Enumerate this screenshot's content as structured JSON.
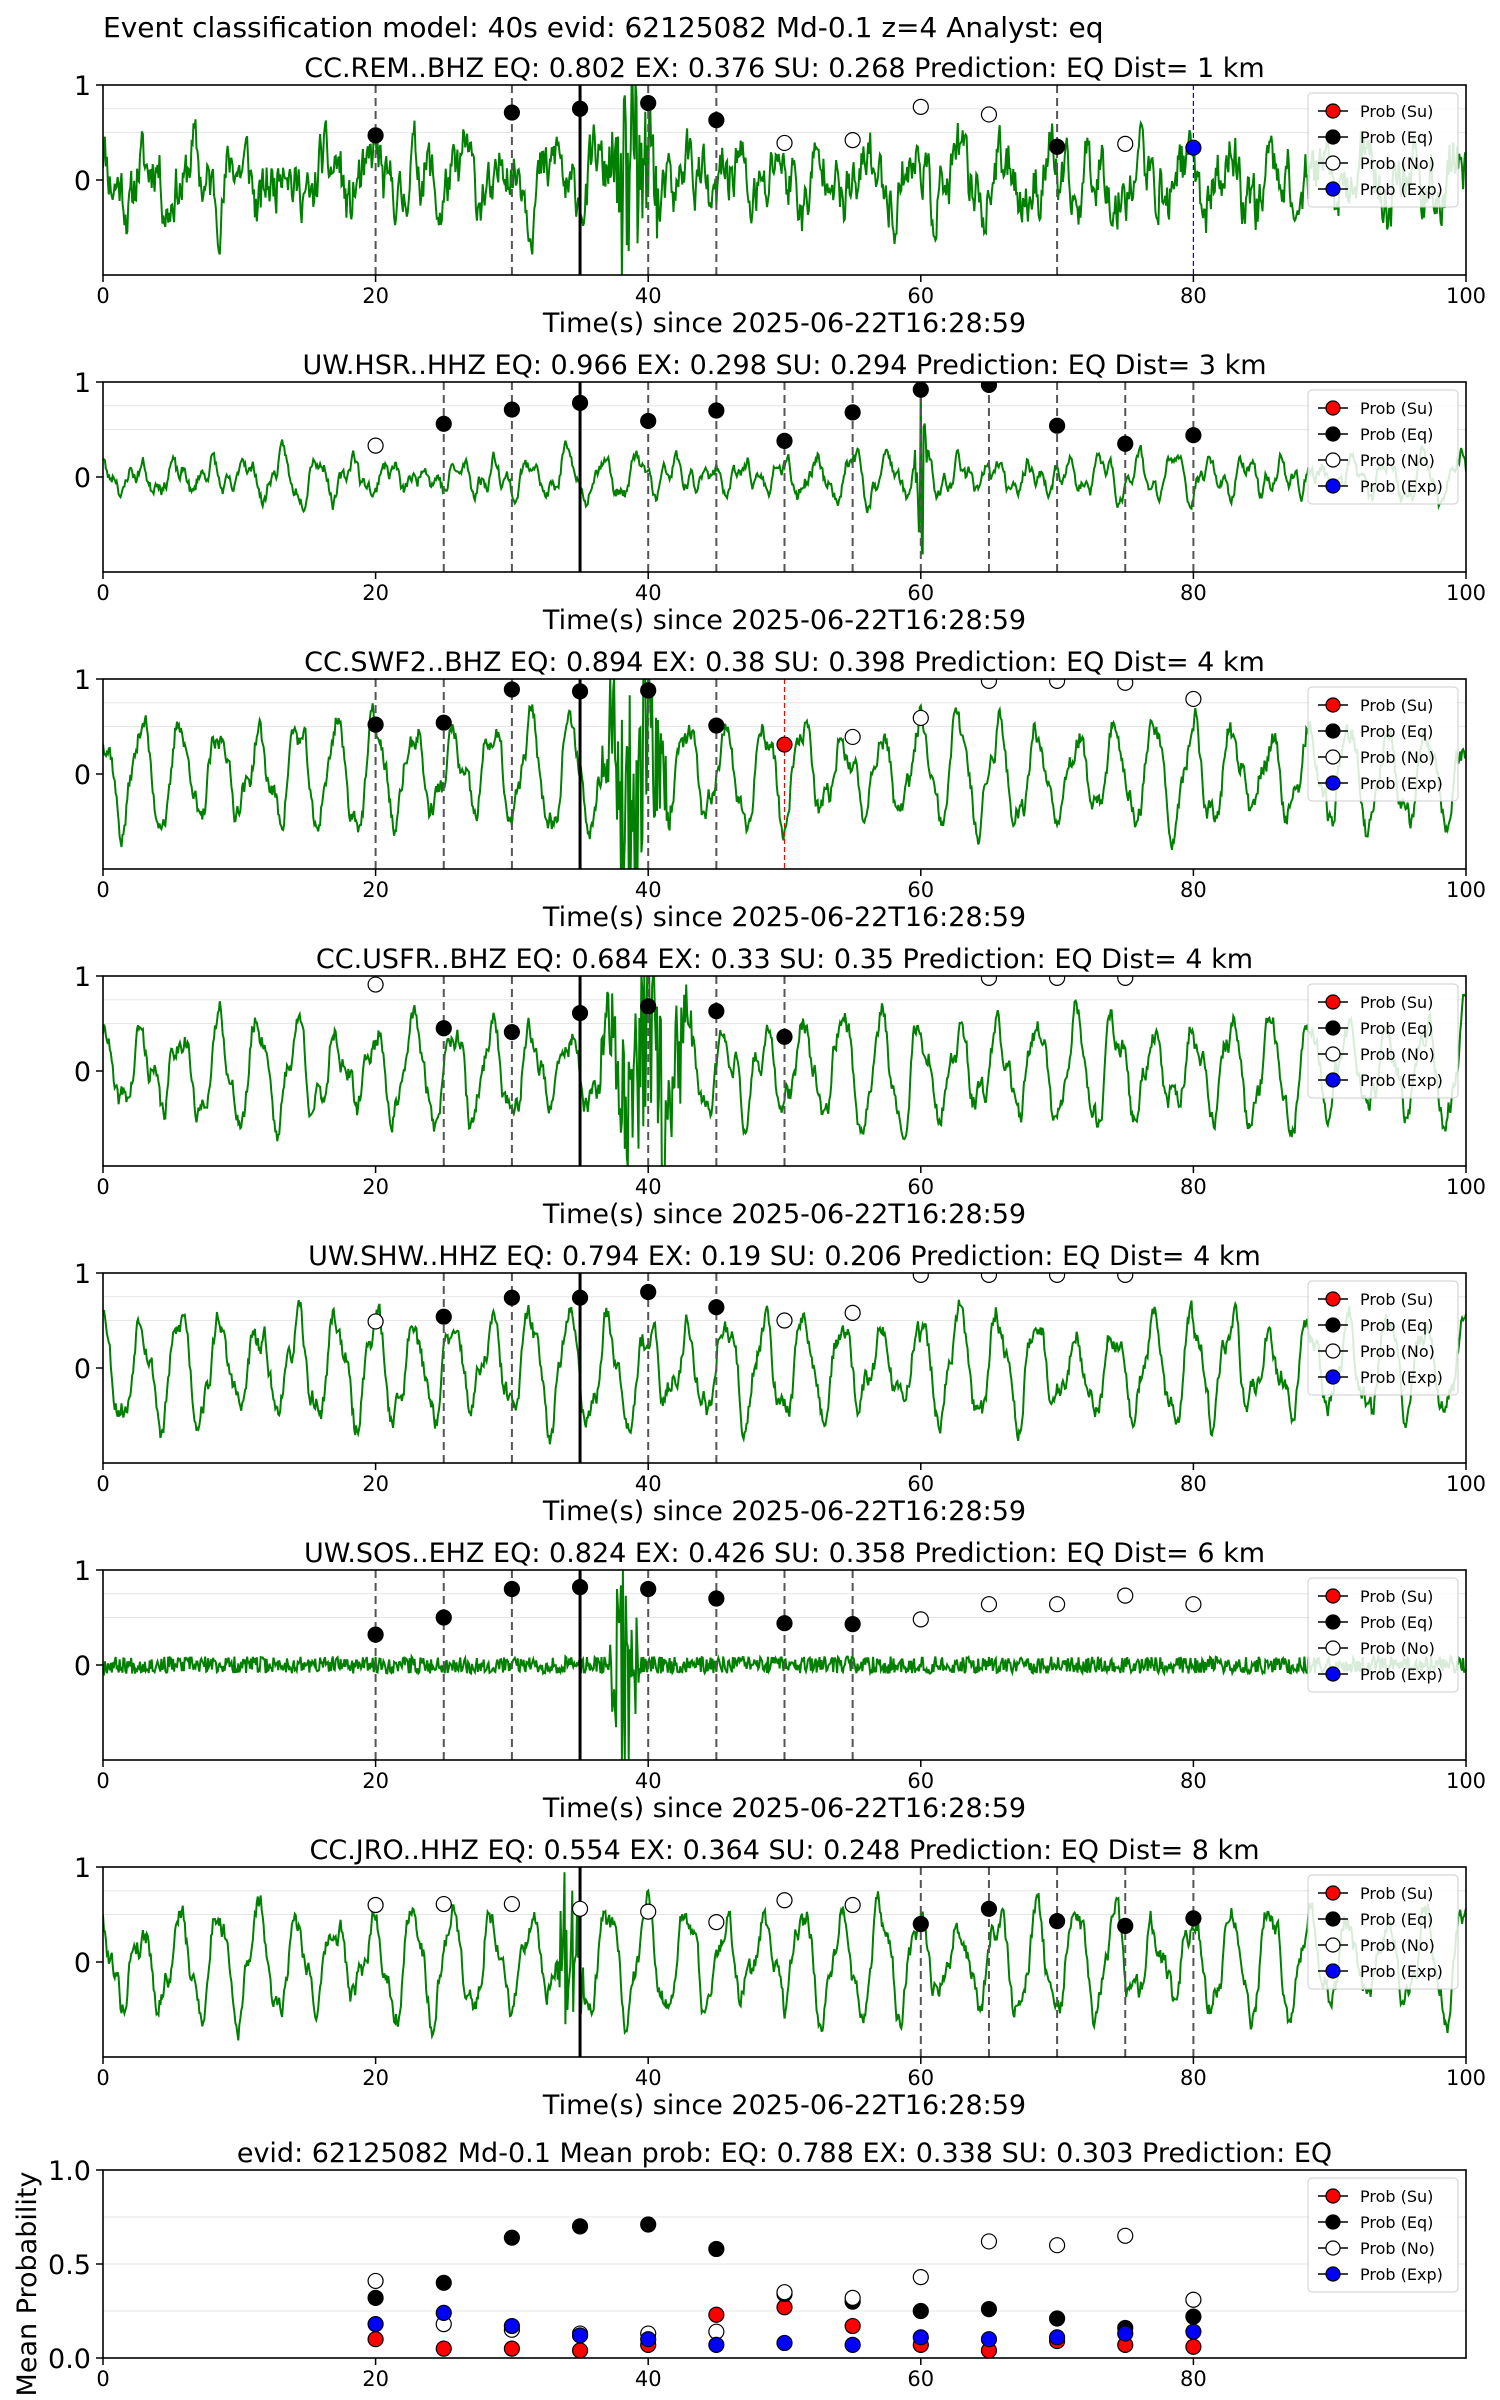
{
  "suptitle": "Event classification model: 40s evid: 62125082 Md-0.1 z=4 Analyst: eq",
  "legend": {
    "su": "Prob (Su)",
    "eq": "Prob (Eq)",
    "no": "Prob (No)",
    "exp": "Prob (Exp)"
  },
  "colors": {
    "trace": "#008000",
    "su": "#ff0000",
    "eq": "#000000",
    "no": "#ffffff",
    "exp": "#0000ff",
    "marker_line": "#555555",
    "arrival_line": "#000000"
  },
  "chart_data": [
    {
      "type": "line",
      "title": "CC.REM..BHZ   EQ: 0.802  EX: 0.376  SU: 0.268   Prediction: EQ    Dist= 1 km",
      "xlabel": "Time(s) since 2025-06-22T16:28:59",
      "xlim": [
        0,
        100
      ],
      "xticks": [
        0,
        20,
        40,
        60,
        80,
        100
      ],
      "ylim": [
        -1,
        1
      ],
      "yticks": [
        0,
        1
      ],
      "arrival": 35,
      "seed": 11,
      "trace_style": "noisy",
      "burst": [
        37,
        41,
        1.6
      ],
      "points": [
        {
          "x": 20,
          "p": 0.47,
          "c": "eq",
          "line": "dash"
        },
        {
          "x": 30,
          "p": 0.71,
          "c": "eq",
          "line": "dash"
        },
        {
          "x": 35,
          "p": 0.75,
          "c": "eq",
          "line": "none"
        },
        {
          "x": 40,
          "p": 0.81,
          "c": "eq",
          "line": "dash"
        },
        {
          "x": 45,
          "p": 0.63,
          "c": "eq",
          "line": "dash"
        },
        {
          "x": 50,
          "p": 0.39,
          "c": "no",
          "line": "none"
        },
        {
          "x": 55,
          "p": 0.42,
          "c": "no",
          "line": "none"
        },
        {
          "x": 60,
          "p": 0.77,
          "c": "no",
          "line": "none"
        },
        {
          "x": 65,
          "p": 0.69,
          "c": "no",
          "line": "none"
        },
        {
          "x": 70,
          "p": 0.35,
          "c": "eq",
          "line": "dash"
        },
        {
          "x": 75,
          "p": 0.38,
          "c": "no",
          "line": "none"
        },
        {
          "x": 80,
          "p": 0.34,
          "c": "exp",
          "line": "blue"
        }
      ]
    },
    {
      "type": "line",
      "title": "UW.HSR..HHZ   EQ: 0.966  EX: 0.298  SU: 0.294   Prediction: EQ    Dist= 3 km",
      "xlabel": "Time(s) since 2025-06-22T16:28:59",
      "xlim": [
        0,
        100
      ],
      "xticks": [
        0,
        20,
        40,
        60,
        80,
        100
      ],
      "ylim": [
        -1,
        1
      ],
      "yticks": [
        0,
        1
      ],
      "arrival": 35,
      "seed": 23,
      "trace_style": "smooth",
      "burst": [
        59.5,
        60.5,
        1.6
      ],
      "points": [
        {
          "x": 20,
          "p": 0.33,
          "c": "no",
          "line": "none"
        },
        {
          "x": 25,
          "p": 0.56,
          "c": "eq",
          "line": "dash"
        },
        {
          "x": 30,
          "p": 0.71,
          "c": "eq",
          "line": "dash"
        },
        {
          "x": 35,
          "p": 0.78,
          "c": "eq",
          "line": "none"
        },
        {
          "x": 40,
          "p": 0.59,
          "c": "eq",
          "line": "dash"
        },
        {
          "x": 45,
          "p": 0.7,
          "c": "eq",
          "line": "dash"
        },
        {
          "x": 50,
          "p": 0.38,
          "c": "eq",
          "line": "dash"
        },
        {
          "x": 55,
          "p": 0.68,
          "c": "eq",
          "line": "dash"
        },
        {
          "x": 60,
          "p": 0.92,
          "c": "eq",
          "line": "dash"
        },
        {
          "x": 65,
          "p": 0.97,
          "c": "eq",
          "line": "dash"
        },
        {
          "x": 70,
          "p": 0.54,
          "c": "eq",
          "line": "dash"
        },
        {
          "x": 75,
          "p": 0.35,
          "c": "eq",
          "line": "dash"
        },
        {
          "x": 80,
          "p": 0.44,
          "c": "eq",
          "line": "dash"
        }
      ]
    },
    {
      "type": "line",
      "title": "CC.SWF2..BHZ   EQ: 0.894  EX: 0.38  SU: 0.398   Prediction: EQ    Dist= 4 km",
      "xlabel": "Time(s) since 2025-06-22T16:28:59",
      "xlim": [
        0,
        100
      ],
      "xticks": [
        0,
        20,
        40,
        60,
        80,
        100
      ],
      "ylim": [
        -1,
        1
      ],
      "yticks": [
        0,
        1
      ],
      "arrival": 35,
      "seed": 37,
      "trace_style": "oscillating",
      "burst": [
        36,
        42,
        1.5
      ],
      "points": [
        {
          "x": 20,
          "p": 0.52,
          "c": "eq",
          "line": "dash"
        },
        {
          "x": 25,
          "p": 0.54,
          "c": "eq",
          "line": "dash"
        },
        {
          "x": 30,
          "p": 0.89,
          "c": "eq",
          "line": "dash"
        },
        {
          "x": 35,
          "p": 0.87,
          "c": "eq",
          "line": "none"
        },
        {
          "x": 40,
          "p": 0.88,
          "c": "eq",
          "line": "dash"
        },
        {
          "x": 45,
          "p": 0.51,
          "c": "eq",
          "line": "dash"
        },
        {
          "x": 50,
          "p": 0.31,
          "c": "su",
          "line": "red"
        },
        {
          "x": 55,
          "p": 0.39,
          "c": "no",
          "line": "none"
        },
        {
          "x": 60,
          "p": 0.59,
          "c": "no",
          "line": "none"
        },
        {
          "x": 65,
          "p": 0.98,
          "c": "no",
          "line": "none"
        },
        {
          "x": 70,
          "p": 0.98,
          "c": "no",
          "line": "none"
        },
        {
          "x": 75,
          "p": 0.96,
          "c": "no",
          "line": "none"
        },
        {
          "x": 80,
          "p": 0.79,
          "c": "no",
          "line": "none"
        }
      ]
    },
    {
      "type": "line",
      "title": "CC.USFR..BHZ   EQ: 0.684  EX: 0.33  SU: 0.35   Prediction: EQ    Dist= 4 km",
      "xlabel": "Time(s) since 2025-06-22T16:28:59",
      "xlim": [
        0,
        100
      ],
      "xticks": [
        0,
        20,
        40,
        60,
        80,
        100
      ],
      "ylim": [
        -1,
        1
      ],
      "yticks": [
        0,
        1
      ],
      "arrival": 35,
      "seed": 41,
      "trace_style": "oscillating",
      "burst": [
        36,
        44,
        1.2
      ],
      "points": [
        {
          "x": 20,
          "p": 0.91,
          "c": "no",
          "line": "none"
        },
        {
          "x": 25,
          "p": 0.45,
          "c": "eq",
          "line": "dash"
        },
        {
          "x": 30,
          "p": 0.41,
          "c": "eq",
          "line": "dash"
        },
        {
          "x": 35,
          "p": 0.61,
          "c": "eq",
          "line": "none"
        },
        {
          "x": 40,
          "p": 0.68,
          "c": "eq",
          "line": "dash"
        },
        {
          "x": 45,
          "p": 0.63,
          "c": "eq",
          "line": "dash"
        },
        {
          "x": 50,
          "p": 0.36,
          "c": "eq",
          "line": "dash"
        },
        {
          "x": 65,
          "p": 0.98,
          "c": "no",
          "line": "none"
        },
        {
          "x": 70,
          "p": 0.98,
          "c": "no",
          "line": "none"
        },
        {
          "x": 75,
          "p": 0.98,
          "c": "no",
          "line": "none"
        }
      ]
    },
    {
      "type": "line",
      "title": "UW.SHW..HHZ   EQ: 0.794  EX: 0.19  SU: 0.206   Prediction: EQ    Dist= 4 km",
      "xlabel": "Time(s) since 2025-06-22T16:28:59",
      "xlim": [
        0,
        100
      ],
      "xticks": [
        0,
        20,
        40,
        60,
        80,
        100
      ],
      "ylim": [
        -1,
        1
      ],
      "yticks": [
        0,
        1
      ],
      "arrival": 35,
      "seed": 53,
      "trace_style": "oscillating",
      "burst": [
        0,
        0,
        0
      ],
      "points": [
        {
          "x": 20,
          "p": 0.49,
          "c": "no",
          "line": "none"
        },
        {
          "x": 25,
          "p": 0.54,
          "c": "eq",
          "line": "dash"
        },
        {
          "x": 30,
          "p": 0.74,
          "c": "eq",
          "line": "dash"
        },
        {
          "x": 35,
          "p": 0.74,
          "c": "eq",
          "line": "none"
        },
        {
          "x": 40,
          "p": 0.8,
          "c": "eq",
          "line": "dash"
        },
        {
          "x": 45,
          "p": 0.64,
          "c": "eq",
          "line": "dash"
        },
        {
          "x": 50,
          "p": 0.5,
          "c": "no",
          "line": "none"
        },
        {
          "x": 55,
          "p": 0.58,
          "c": "no",
          "line": "none"
        },
        {
          "x": 60,
          "p": 0.98,
          "c": "no",
          "line": "none"
        },
        {
          "x": 65,
          "p": 0.98,
          "c": "no",
          "line": "none"
        },
        {
          "x": 70,
          "p": 0.98,
          "c": "no",
          "line": "none"
        },
        {
          "x": 75,
          "p": 0.98,
          "c": "no",
          "line": "none"
        }
      ]
    },
    {
      "type": "line",
      "title": "UW.SOS..EHZ   EQ: 0.824  EX: 0.426  SU: 0.358   Prediction: EQ    Dist= 6 km",
      "xlabel": "Time(s) since 2025-06-22T16:28:59",
      "xlim": [
        0,
        100
      ],
      "xticks": [
        0,
        20,
        40,
        60,
        80,
        100
      ],
      "ylim": [
        -1,
        1
      ],
      "yticks": [
        0,
        1
      ],
      "arrival": 35,
      "seed": 67,
      "trace_style": "quiet",
      "burst": [
        37,
        39.5,
        1.8
      ],
      "points": [
        {
          "x": 20,
          "p": 0.32,
          "c": "eq",
          "line": "dash"
        },
        {
          "x": 25,
          "p": 0.5,
          "c": "eq",
          "line": "dash"
        },
        {
          "x": 30,
          "p": 0.8,
          "c": "eq",
          "line": "dash"
        },
        {
          "x": 35,
          "p": 0.82,
          "c": "eq",
          "line": "none"
        },
        {
          "x": 40,
          "p": 0.8,
          "c": "eq",
          "line": "dash"
        },
        {
          "x": 45,
          "p": 0.7,
          "c": "eq",
          "line": "dash"
        },
        {
          "x": 50,
          "p": 0.44,
          "c": "eq",
          "line": "dash"
        },
        {
          "x": 55,
          "p": 0.43,
          "c": "eq",
          "line": "dash"
        },
        {
          "x": 60,
          "p": 0.48,
          "c": "no",
          "line": "none"
        },
        {
          "x": 65,
          "p": 0.64,
          "c": "no",
          "line": "none"
        },
        {
          "x": 70,
          "p": 0.64,
          "c": "no",
          "line": "none"
        },
        {
          "x": 75,
          "p": 0.73,
          "c": "no",
          "line": "none"
        },
        {
          "x": 80,
          "p": 0.64,
          "c": "no",
          "line": "none"
        }
      ]
    },
    {
      "type": "line",
      "title": "CC.JRO..HHZ   EQ: 0.554  EX: 0.364  SU: 0.248   Prediction: EQ    Dist= 8 km",
      "xlabel": "Time(s) since 2025-06-22T16:28:59",
      "xlim": [
        0,
        100
      ],
      "xticks": [
        0,
        20,
        40,
        60,
        80,
        100
      ],
      "ylim": [
        -1,
        1
      ],
      "yticks": [
        0,
        1
      ],
      "arrival": 35,
      "seed": 79,
      "trace_style": "oscillating",
      "burst": [
        33,
        35.5,
        1.4
      ],
      "points": [
        {
          "x": 20,
          "p": 0.6,
          "c": "no",
          "line": "none"
        },
        {
          "x": 25,
          "p": 0.61,
          "c": "no",
          "line": "none"
        },
        {
          "x": 30,
          "p": 0.61,
          "c": "no",
          "line": "none"
        },
        {
          "x": 35,
          "p": 0.56,
          "c": "no",
          "line": "none"
        },
        {
          "x": 40,
          "p": 0.53,
          "c": "no",
          "line": "none"
        },
        {
          "x": 45,
          "p": 0.42,
          "c": "no",
          "line": "none"
        },
        {
          "x": 50,
          "p": 0.65,
          "c": "no",
          "line": "none"
        },
        {
          "x": 55,
          "p": 0.6,
          "c": "no",
          "line": "none"
        },
        {
          "x": 60,
          "p": 0.4,
          "c": "eq",
          "line": "dash"
        },
        {
          "x": 65,
          "p": 0.56,
          "c": "eq",
          "line": "dash"
        },
        {
          "x": 70,
          "p": 0.43,
          "c": "eq",
          "line": "dash"
        },
        {
          "x": 75,
          "p": 0.38,
          "c": "eq",
          "line": "dash"
        },
        {
          "x": 80,
          "p": 0.46,
          "c": "eq",
          "line": "dash"
        }
      ]
    },
    {
      "type": "scatter",
      "title": "evid: 62125082  Md-0.1   Mean prob:   EQ: 0.788  EX: 0.338  SU: 0.303   Prediction: EQ",
      "xlabel": "",
      "ylabel": "Mean Probability",
      "xlim": [
        0,
        100
      ],
      "xticks": [
        0,
        20,
        40,
        60,
        80
      ],
      "ylim": [
        0,
        1
      ],
      "yticks": [
        0.0,
        0.5,
        1.0
      ],
      "x": [
        20,
        25,
        30,
        35,
        40,
        45,
        50,
        55,
        60,
        65,
        70,
        75,
        80
      ],
      "series": [
        {
          "name": "Prob (Su)",
          "c": "su",
          "values": [
            0.1,
            0.05,
            0.05,
            0.04,
            0.07,
            0.23,
            0.27,
            0.17,
            0.07,
            0.04,
            0.09,
            0.07,
            0.06
          ]
        },
        {
          "name": "Prob (Eq)",
          "c": "eq",
          "values": [
            0.32,
            0.4,
            0.64,
            0.7,
            0.71,
            0.58,
            0.34,
            0.3,
            0.25,
            0.26,
            0.21,
            0.16,
            0.22
          ]
        },
        {
          "name": "Prob (No)",
          "c": "no",
          "values": [
            0.41,
            0.18,
            0.15,
            0.13,
            0.13,
            0.14,
            0.35,
            0.32,
            0.43,
            0.62,
            0.6,
            0.65,
            0.31
          ]
        },
        {
          "name": "Prob (Exp)",
          "c": "exp",
          "values": [
            0.18,
            0.24,
            0.17,
            0.12,
            0.1,
            0.07,
            0.08,
            0.07,
            0.11,
            0.1,
            0.11,
            0.13,
            0.14
          ]
        }
      ]
    }
  ]
}
